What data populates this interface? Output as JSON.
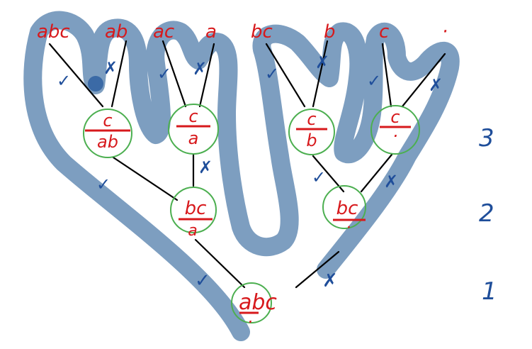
{
  "colors": {
    "snake": "#6f93b9",
    "snake_head": "#3b6aa6",
    "tree_lines": "#000000",
    "circles": "#4caf50",
    "labels": "#d7191c",
    "marks": "#1f4e9a"
  },
  "leaves": [
    {
      "label": "abc",
      "mark": "✓"
    },
    {
      "label": "ab",
      "mark": "✗"
    },
    {
      "label": "ac",
      "mark": "✓"
    },
    {
      "label": "a",
      "mark": "✗"
    },
    {
      "label": "bc",
      "mark": "✓"
    },
    {
      "label": "b",
      "mark": "✗"
    },
    {
      "label": "c",
      "mark": "✓"
    },
    {
      "label": "·",
      "mark": "✗"
    }
  ],
  "level3_nodes": [
    {
      "top": "c",
      "bottom": "ab"
    },
    {
      "top": "c",
      "bottom": "a"
    },
    {
      "top": "c",
      "bottom": "b"
    },
    {
      "top": "c",
      "bottom": "·"
    }
  ],
  "level3_marks": [
    "✓",
    "✗",
    "✓",
    "✗"
  ],
  "level2_nodes": [
    {
      "top": "bc",
      "bottom": "a"
    },
    {
      "top": "bc",
      "bottom": "·"
    }
  ],
  "root": {
    "top": "abc",
    "bottom": "·"
  },
  "root_marks": [
    "✓",
    "✗"
  ],
  "levels": [
    "3",
    "2",
    "1"
  ]
}
